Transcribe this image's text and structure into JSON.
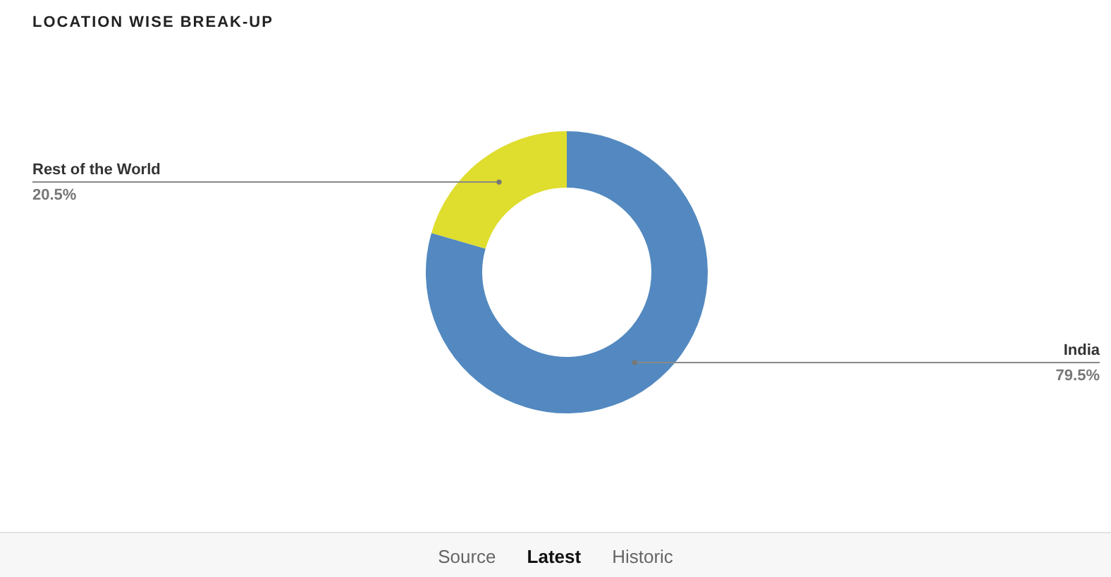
{
  "chart_data": {
    "type": "donut",
    "title": "LOCATION WISE BREAK-UP",
    "categories": [
      "India",
      "Rest of the World"
    ],
    "values": [
      79.5,
      20.5
    ],
    "value_labels": [
      "79.5%",
      "20.5%"
    ],
    "colors": [
      "#5389c0",
      "#dfdd2e"
    ],
    "legend": false,
    "annotations": [
      "Source",
      "Latest",
      "Historic"
    ]
  }
}
